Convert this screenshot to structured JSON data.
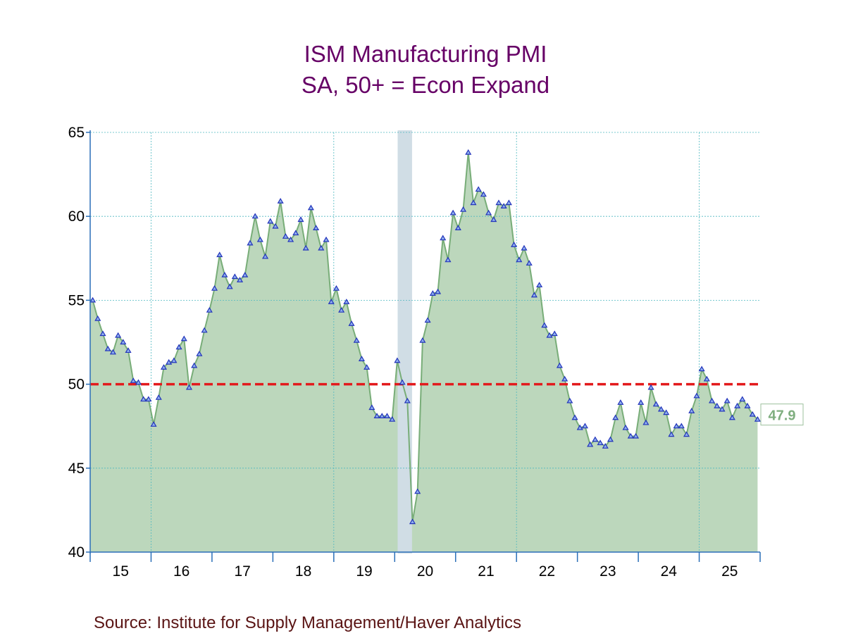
{
  "chart_data": {
    "type": "area",
    "title": "ISM Manufacturing PMI",
    "subtitle": "SA, 50+ = Econ Expand",
    "source": "Source:  Institute for Supply Management/Haver Analytics",
    "start": "2015-01",
    "frequency": "monthly",
    "ylim": [
      40,
      65
    ],
    "y_ticks": [
      "40",
      "45",
      "50",
      "55",
      "60",
      "65"
    ],
    "x_tick_labels": [
      "15",
      "16",
      "17",
      "18",
      "19",
      "20",
      "21",
      "22",
      "23",
      "24",
      "25"
    ],
    "reference_line": {
      "value": 50,
      "color": "#e31a1c",
      "style": "dashed"
    },
    "recession_shading": {
      "start": "2020-02",
      "end": "2020-04",
      "color": "#d0dde5"
    },
    "last_value_label": "47.9",
    "grid": true,
    "colors": {
      "fill": "#bcd7bc",
      "line": "#78ad78",
      "marker": "#2233bb",
      "label": "#7fae7f"
    },
    "values": [
      55.0,
      53.9,
      53.0,
      52.1,
      51.9,
      52.9,
      52.5,
      52.0,
      50.2,
      50.1,
      49.1,
      49.1,
      47.6,
      49.2,
      51.0,
      51.3,
      51.4,
      52.2,
      52.7,
      49.8,
      51.1,
      51.8,
      53.2,
      54.4,
      55.7,
      57.7,
      56.5,
      55.8,
      56.4,
      56.2,
      56.5,
      58.4,
      60.0,
      58.6,
      57.6,
      59.7,
      59.4,
      60.9,
      58.8,
      58.6,
      59.0,
      59.8,
      58.1,
      60.5,
      59.3,
      58.1,
      58.6,
      54.9,
      55.7,
      54.4,
      54.9,
      53.6,
      52.6,
      51.5,
      51.0,
      48.6,
      48.1,
      48.1,
      48.1,
      47.9,
      51.4,
      50.1,
      49.0,
      41.8,
      43.6,
      52.6,
      53.8,
      55.4,
      55.5,
      58.7,
      57.4,
      60.2,
      59.3,
      60.4,
      63.8,
      60.8,
      61.6,
      61.3,
      60.2,
      59.8,
      60.8,
      60.6,
      60.8,
      58.3,
      57.4,
      58.1,
      57.2,
      55.3,
      55.9,
      53.5,
      52.9,
      53.0,
      51.1,
      50.3,
      49.0,
      48.0,
      47.4,
      47.5,
      46.4,
      46.7,
      46.5,
      46.3,
      46.7,
      48.0,
      48.9,
      47.4,
      46.9,
      46.9,
      48.9,
      47.7,
      49.8,
      48.8,
      48.5,
      48.3,
      47.0,
      47.5,
      47.5,
      47.0,
      48.4,
      49.3,
      50.9,
      50.3,
      49.0,
      48.7,
      48.5,
      49.0,
      48.0,
      48.7,
      49.1,
      48.7,
      48.2,
      47.9
    ]
  }
}
